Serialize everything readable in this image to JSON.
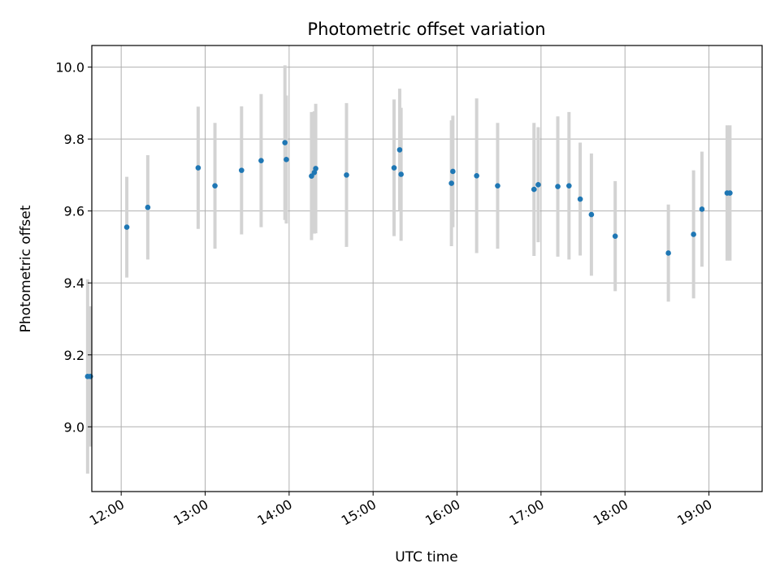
{
  "chart_data": {
    "type": "scatter",
    "title": "Photometric offset variation",
    "xlabel": "UTC time",
    "ylabel": "Photometric offset",
    "x_ticks": [
      "12:00",
      "13:00",
      "14:00",
      "15:00",
      "16:00",
      "17:00",
      "18:00",
      "19:00"
    ],
    "y_ticks": [
      "9.0",
      "9.2",
      "9.4",
      "9.6",
      "9.8",
      "10.0"
    ],
    "xlim": [
      "11:39",
      "19:38"
    ],
    "ylim": [
      8.82,
      10.06
    ],
    "grid": true,
    "colors": {
      "points": "#1f77b4",
      "errorbars": "#d3d3d3",
      "grid": "#b0b0b0"
    },
    "points": [
      {
        "x": "11:36",
        "y": 9.14,
        "yerr": 0.27
      },
      {
        "x": "11:38",
        "y": 9.14,
        "yerr": 0.195
      },
      {
        "x": "12:04",
        "y": 9.555,
        "yerr": 0.14
      },
      {
        "x": "12:19",
        "y": 9.61,
        "yerr": 0.145
      },
      {
        "x": "12:55",
        "y": 9.72,
        "yerr": 0.17
      },
      {
        "x": "13:07",
        "y": 9.67,
        "yerr": 0.175
      },
      {
        "x": "13:26",
        "y": 9.713,
        "yerr": 0.178
      },
      {
        "x": "13:40",
        "y": 9.74,
        "yerr": 0.185
      },
      {
        "x": "13:57",
        "y": 9.79,
        "yerr": 0.215
      },
      {
        "x": "13:58",
        "y": 9.743,
        "yerr": 0.178
      },
      {
        "x": "14:16",
        "y": 9.697,
        "yerr": 0.178
      },
      {
        "x": "14:18",
        "y": 9.707,
        "yerr": 0.17
      },
      {
        "x": "14:19",
        "y": 9.718,
        "yerr": 0.18
      },
      {
        "x": "14:41",
        "y": 9.7,
        "yerr": 0.2
      },
      {
        "x": "15:15",
        "y": 9.72,
        "yerr": 0.19
      },
      {
        "x": "15:19",
        "y": 9.77,
        "yerr": 0.17
      },
      {
        "x": "15:20",
        "y": 9.702,
        "yerr": 0.185
      },
      {
        "x": "15:56",
        "y": 9.677,
        "yerr": 0.175
      },
      {
        "x": "15:57",
        "y": 9.71,
        "yerr": 0.155
      },
      {
        "x": "16:14",
        "y": 9.698,
        "yerr": 0.215
      },
      {
        "x": "16:29",
        "y": 9.67,
        "yerr": 0.175
      },
      {
        "x": "16:55",
        "y": 9.66,
        "yerr": 0.185
      },
      {
        "x": "16:58",
        "y": 9.673,
        "yerr": 0.16
      },
      {
        "x": "17:12",
        "y": 9.668,
        "yerr": 0.195
      },
      {
        "x": "17:20",
        "y": 9.67,
        "yerr": 0.205
      },
      {
        "x": "17:28",
        "y": 9.633,
        "yerr": 0.157
      },
      {
        "x": "17:36",
        "y": 9.59,
        "yerr": 0.17
      },
      {
        "x": "17:53",
        "y": 9.53,
        "yerr": 0.153
      },
      {
        "x": "18:31",
        "y": 9.483,
        "yerr": 0.135
      },
      {
        "x": "18:49",
        "y": 9.535,
        "yerr": 0.178
      },
      {
        "x": "18:55",
        "y": 9.605,
        "yerr": 0.16
      },
      {
        "x": "19:13",
        "y": 9.65,
        "yerr": 0.188
      },
      {
        "x": "19:15",
        "y": 9.65,
        "yerr": 0.188
      }
    ]
  }
}
